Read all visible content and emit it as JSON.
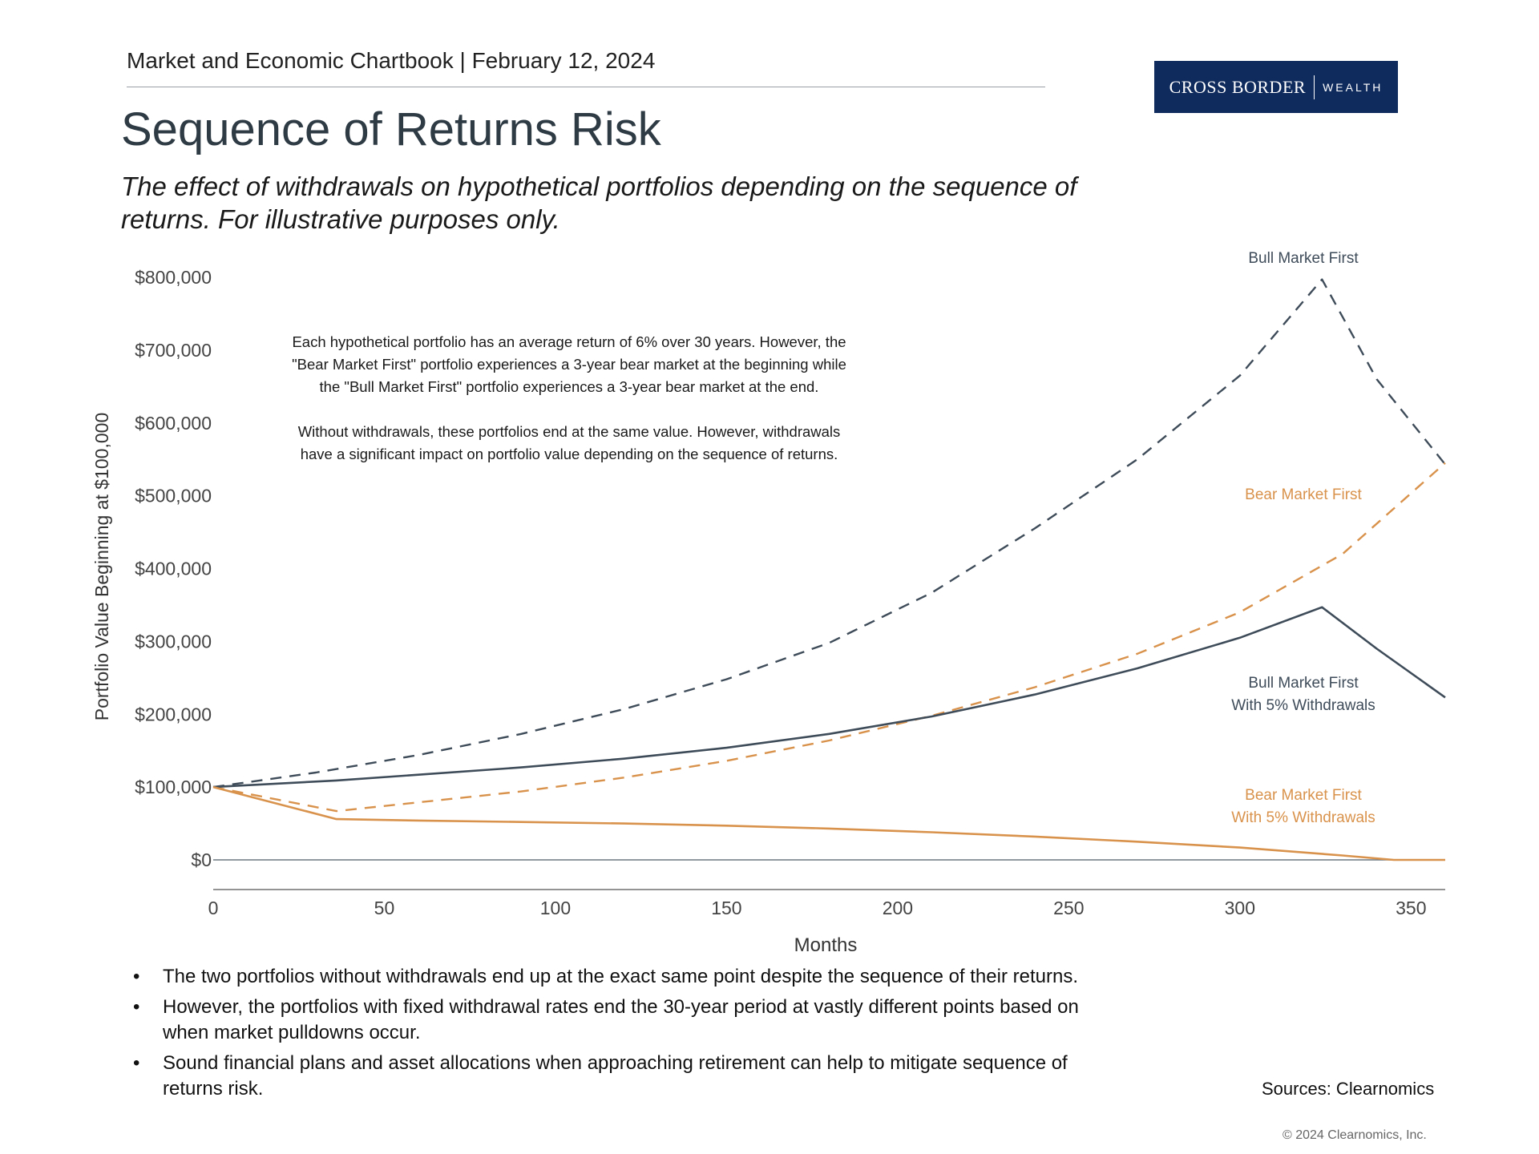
{
  "header": {
    "text": "Market and Economic Chartbook | February 12, 2024"
  },
  "logo": {
    "brand": "CROSS BORDER",
    "sub": "WEALTH"
  },
  "title": "Sequence of Returns Risk",
  "subtitle": "The effect of withdrawals on hypothetical portfolios depending on the sequence of returns. For illustrative purposes only.",
  "annotation": {
    "p1": "Each hypothetical portfolio has an average return of 6% over 30 years. However, the \"Bear Market First\" portfolio experiences a 3-year bear market at the beginning while the \"Bull Market First\" portfolio experiences a 3-year bear market at the end.",
    "p2": "Without withdrawals, these portfolios end at the same value. However, withdrawals have a significant impact on portfolio value depending on the sequence of returns."
  },
  "colors": {
    "bull": "#3e4b59",
    "bear": "#d9924b",
    "zero_line": "#6b7680",
    "axis": "#555555",
    "logo_bg": "#0f2a5c"
  },
  "chart_data": {
    "type": "line",
    "title": "",
    "xlabel": "Months",
    "ylabel": "Portfolio Value Beginning at $100,000",
    "xlim": [
      0,
      360
    ],
    "ylim": [
      0,
      800000
    ],
    "x_ticks": [
      0,
      50,
      100,
      150,
      200,
      250,
      300,
      350
    ],
    "y_ticks": [
      0,
      100000,
      200000,
      300000,
      400000,
      500000,
      600000,
      700000,
      800000
    ],
    "y_tick_labels": [
      "$0",
      "$100,000",
      "$200,000",
      "$300,000",
      "$400,000",
      "$500,000",
      "$600,000",
      "$700,000",
      "$800,000"
    ],
    "series": [
      {
        "name": "Bull Market First",
        "label_lines": [
          "Bull Market First"
        ],
        "style": "dashed",
        "color": "#3e4b59",
        "x": [
          0,
          30,
          60,
          90,
          120,
          150,
          180,
          210,
          240,
          270,
          300,
          324,
          340,
          360
        ],
        "y": [
          100000,
          120000,
          144000,
          173000,
          207000,
          248000,
          298000,
          367000,
          455000,
          550000,
          665000,
          797000,
          660000,
          543000
        ]
      },
      {
        "name": "Bear Market First",
        "label_lines": [
          "Bear Market First"
        ],
        "style": "dashed",
        "color": "#d9924b",
        "x": [
          0,
          36,
          60,
          90,
          120,
          150,
          180,
          210,
          240,
          270,
          300,
          330,
          360
        ],
        "y": [
          100000,
          67000,
          79000,
          94000,
          113000,
          136000,
          164000,
          198000,
          237000,
          283000,
          340000,
          420000,
          545000
        ]
      },
      {
        "name": "Bull Market First With 5% Withdrawals",
        "label_lines": [
          "Bull Market First",
          "With 5% Withdrawals"
        ],
        "style": "solid",
        "color": "#3e4b59",
        "x": [
          0,
          36,
          60,
          90,
          120,
          150,
          180,
          210,
          240,
          270,
          300,
          324,
          340,
          360
        ],
        "y": [
          100000,
          109000,
          117000,
          127000,
          139000,
          154000,
          173000,
          197000,
          227000,
          263000,
          305000,
          347000,
          290000,
          223000
        ]
      },
      {
        "name": "Bear Market First With 5% Withdrawals",
        "label_lines": [
          "Bear Market First",
          "With 5% Withdrawals"
        ],
        "style": "solid",
        "color": "#d9924b",
        "x": [
          0,
          36,
          60,
          90,
          120,
          150,
          180,
          210,
          240,
          270,
          300,
          330,
          345,
          360
        ],
        "y": [
          100000,
          56000,
          54000,
          52000,
          50000,
          47000,
          43000,
          38000,
          32000,
          25000,
          17000,
          6000,
          0,
          0
        ]
      }
    ]
  },
  "bullets": [
    "The two portfolios without withdrawals end up at the exact same point despite the sequence of their returns.",
    "However, the portfolios with fixed withdrawal rates end the 30-year period at vastly different points based on when market pulldowns occur.",
    "Sound financial plans and asset allocations when approaching retirement can help to mitigate sequence of returns risk."
  ],
  "sources": "Sources: Clearnomics",
  "copyright": "© 2024 Clearnomics, Inc."
}
